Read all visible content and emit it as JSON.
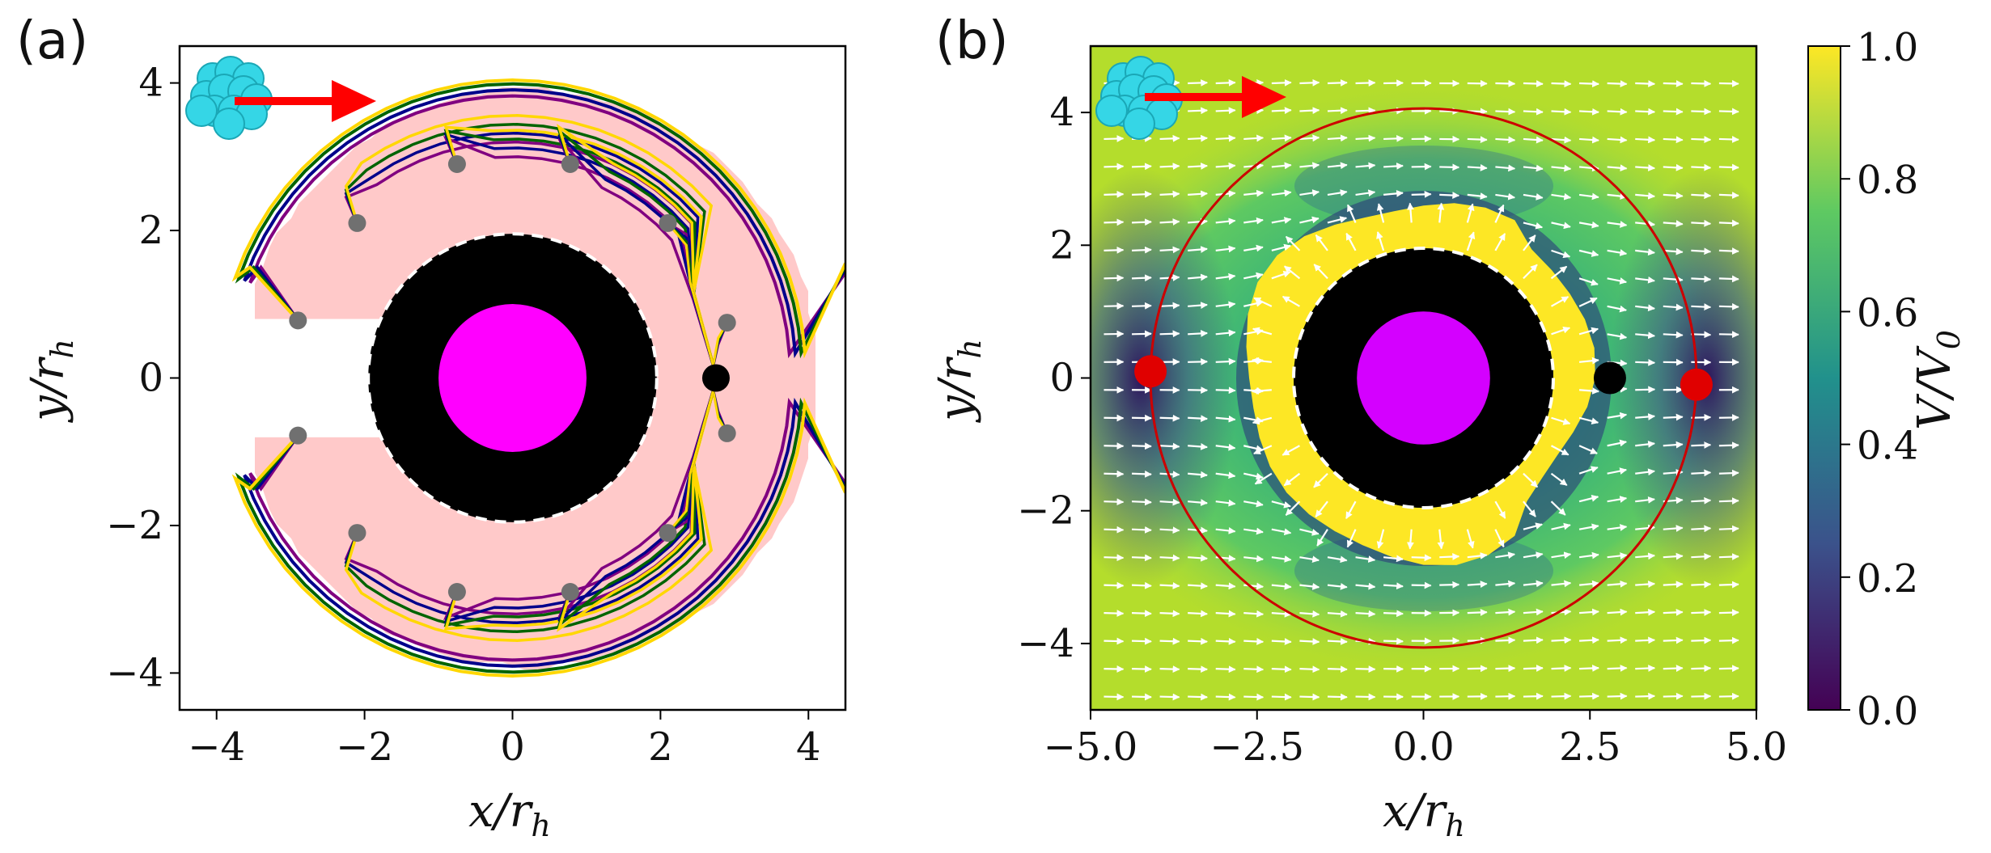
{
  "figure": {
    "colors": {
      "pink": "#ffc9c9",
      "purple": "#800080",
      "navy": "#00008b",
      "green": "#006400",
      "gold": "#ffd700",
      "core": "#000000",
      "center": "#ff00ff",
      "center_b": "#d400ff",
      "arrow": "#ff0000",
      "cluster": "#35d6e6",
      "particle": "#707070",
      "circle_b": "#cc0000",
      "stagnation": "#e00000"
    }
  },
  "chart_data": [
    {
      "type": "line",
      "panel_label": "(a)",
      "title": "",
      "xlabel": "x/r",
      "xlabel_sub": "h",
      "ylabel": "y/r",
      "ylabel_sub": "h",
      "xlim": [
        -4.5,
        4.5
      ],
      "ylim": [
        -4.5,
        4.5
      ],
      "xticks": [
        -4,
        -2,
        0,
        2,
        4
      ],
      "yticks": [
        -4,
        -2,
        0,
        2,
        4
      ],
      "xtick_labels": [
        "−4",
        "−2",
        "0",
        "2",
        "4"
      ],
      "ytick_labels": [
        "−4",
        "−2",
        "0",
        "2",
        "4"
      ],
      "core_radius": 1.95,
      "inner_radius": 1.0,
      "black_dot": [
        2.75,
        0
      ],
      "start_points": [
        [
          -2.9,
          0.78
        ],
        [
          -2.1,
          2.1
        ],
        [
          -0.75,
          2.9
        ],
        [
          0.78,
          2.9
        ],
        [
          2.1,
          2.1
        ],
        [
          2.9,
          0.75
        ],
        [
          -2.9,
          -0.78
        ],
        [
          -2.1,
          -2.1
        ],
        [
          -0.75,
          -2.9
        ],
        [
          0.78,
          -2.9
        ],
        [
          2.1,
          -2.1
        ],
        [
          2.9,
          -0.75
        ]
      ],
      "series": [
        {
          "name": "purple",
          "color": "#800080"
        },
        {
          "name": "navy",
          "color": "#00008b"
        },
        {
          "name": "green",
          "color": "#006400"
        },
        {
          "name": "gold",
          "color": "#ffd700"
        }
      ]
    },
    {
      "type": "heatmap",
      "panel_label": "(b)",
      "title": "",
      "xlabel": "x/r",
      "xlabel_sub": "h",
      "ylabel": "y/r",
      "ylabel_sub": "h",
      "xlim": [
        -5,
        5
      ],
      "ylim": [
        -5,
        5
      ],
      "xticks": [
        -5,
        -2.5,
        0,
        2.5,
        5
      ],
      "yticks": [
        -4,
        -2,
        0,
        2,
        4
      ],
      "xtick_labels": [
        "−5.0",
        "−2.5",
        "0.0",
        "2.5",
        "5.0"
      ],
      "ytick_labels": [
        "−4",
        "−2",
        "0",
        "2",
        "4"
      ],
      "core_radius": 1.95,
      "inner_radius": 1.0,
      "black_dot": [
        2.8,
        0
      ],
      "red_dots": [
        [
          -4.1,
          0.1
        ],
        [
          4.1,
          -0.1
        ]
      ],
      "circle_radius_x": 4.1,
      "circle_radius_y": 4.05,
      "colorbar": {
        "label": "V/V",
        "label_sub": "0",
        "range": [
          0.0,
          1.0
        ],
        "ticks": [
          0.0,
          0.2,
          0.4,
          0.6,
          0.8,
          1.0
        ],
        "tick_labels": [
          "0.0",
          "0.2",
          "0.4",
          "0.6",
          "0.8",
          "1.0"
        ],
        "colormap": [
          "#440154",
          "#3b528b",
          "#21918c",
          "#5ec962",
          "#fde725"
        ]
      }
    }
  ]
}
